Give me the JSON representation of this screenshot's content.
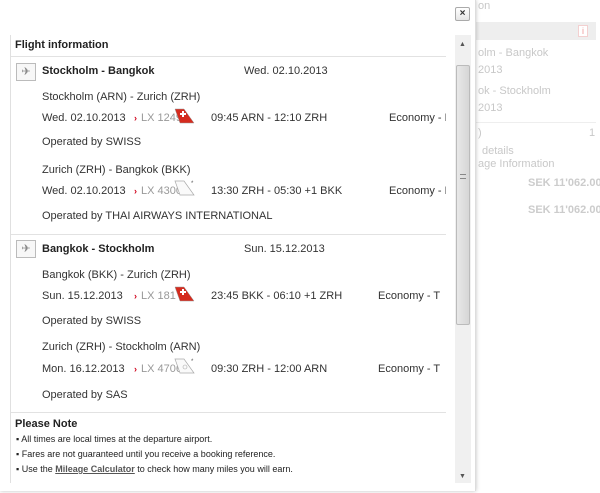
{
  "background": {
    "title_fragment": "on",
    "seg1": "olm - Bangkok",
    "seg1_date": "2013",
    "seg2": "ok - Stockholm",
    "seg2_date": "2013",
    "paren": ")",
    "count": "1",
    "details": "details",
    "mileage": "age Information",
    "price1": "SEK 11'062.00",
    "price2": "SEK 11'062.00"
  },
  "modal": {
    "close_label": "×",
    "title": "Flight information",
    "bounds": [
      {
        "route": "Stockholm - Bangkok",
        "date": "Wed. 02.10.2013",
        "segments": [
          {
            "route": "Stockholm (ARN) - Zurich (ZRH)",
            "date": "Wed. 02.10.2013",
            "flight": "LX 1249",
            "airline_logo": "swiss-tail",
            "times": "09:45 ARN - 12:10 ZRH",
            "class": "Economy - M",
            "operated": "Operated by SWISS"
          },
          {
            "route": "Zurich (ZRH) - Bangkok (BKK)",
            "date": "Wed. 02.10.2013",
            "flight": "LX 4300",
            "airline_logo": "codeshare-tail",
            "times": "13:30 ZRH - 05:30 +1 BKK",
            "class": "Economy - M",
            "operated": "Operated by THAI AIRWAYS INTERNATIONAL"
          }
        ]
      },
      {
        "route": "Bangkok - Stockholm",
        "date": "Sun. 15.12.2013",
        "segments": [
          {
            "route": "Bangkok (BKK) - Zurich (ZRH)",
            "date": "Sun. 15.12.2013",
            "flight": "LX 181",
            "airline_logo": "swiss-tail",
            "times": "23:45 BKK - 06:10 +1 ZRH",
            "class": "Economy - T",
            "operated": "Operated by SWISS"
          },
          {
            "route": "Zurich (ZRH) - Stockholm (ARN)",
            "date": "Mon. 16.12.2013",
            "flight": "LX 4706",
            "airline_logo": "codeshare-tail",
            "times": "09:30 ZRH - 12:00 ARN",
            "class": "Economy - T",
            "operated": "Operated by SAS"
          }
        ]
      }
    ],
    "note": {
      "title": "Please Note",
      "items": [
        "All times are local times at the departure airport.",
        "Fares are not guaranteed until you receive a booking reference."
      ],
      "item3_pre": "Use the ",
      "item3_link": "Mileage Calculator",
      "item3_post": " to check how many miles you will earn."
    }
  },
  "colors": {
    "accent": "#d0021b"
  }
}
